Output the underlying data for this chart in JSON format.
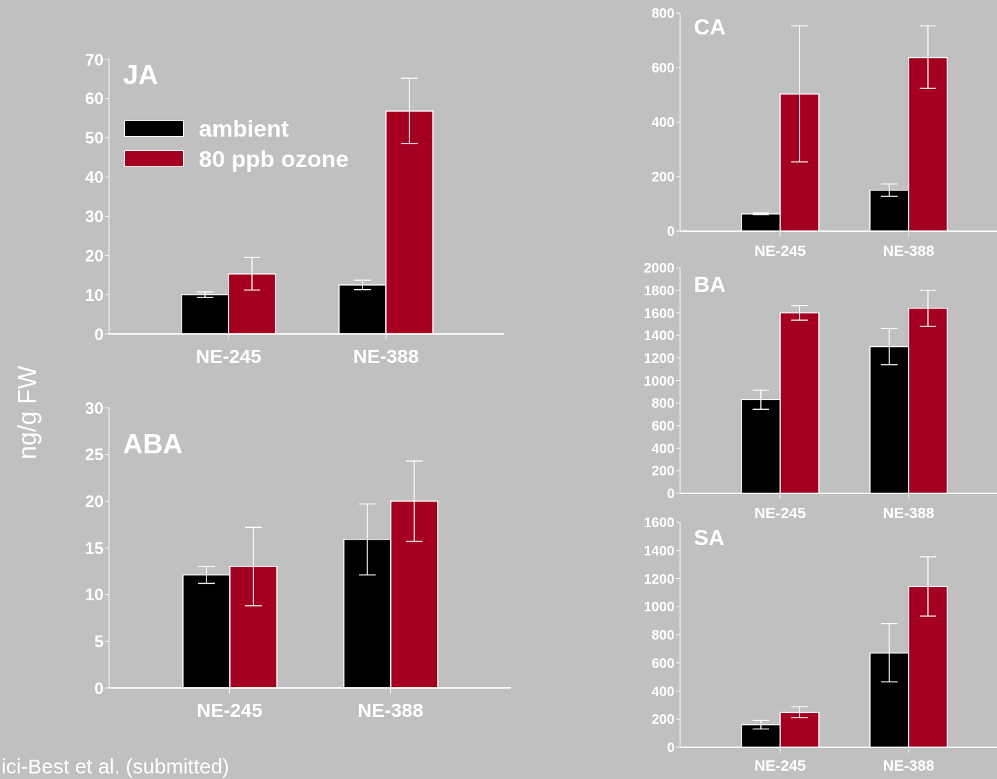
{
  "chart_data": [
    {
      "type": "bar",
      "title": "JA",
      "ylabel": "ng/g FW",
      "categories": [
        "NE-245",
        "NE-388"
      ],
      "series": [
        {
          "name": "ambient",
          "color": "#000000",
          "values": [
            10,
            12.5
          ],
          "errors": [
            [
              9.3,
              10.7
            ],
            [
              11.3,
              13.7
            ]
          ]
        },
        {
          "name": "80 ppb ozone",
          "color": "#a50021",
          "values": [
            15.3,
            56.8
          ],
          "errors": [
            [
              11.2,
              19.5
            ],
            [
              48.5,
              65.2
            ]
          ]
        }
      ],
      "ylim": [
        0,
        70
      ],
      "yticks": [
        0,
        10,
        20,
        30,
        40,
        50,
        60,
        70
      ],
      "legend": "top left"
    },
    {
      "type": "bar",
      "title": "ABA",
      "categories": [
        "NE-245",
        "NE-388"
      ],
      "series": [
        {
          "color": "#000000",
          "values": [
            12.1,
            15.9
          ],
          "errors": [
            [
              11.2,
              13.0
            ],
            [
              12.1,
              19.7
            ]
          ]
        },
        {
          "color": "#a50021",
          "values": [
            13.0,
            20.0
          ],
          "errors": [
            [
              8.8,
              17.2
            ],
            [
              15.7,
              24.3
            ]
          ]
        }
      ],
      "ylim": [
        0,
        30
      ],
      "yticks": [
        0,
        5,
        10,
        15,
        20,
        25,
        30
      ],
      "annotations": [
        "ici-Best et al. (submitted)"
      ]
    },
    {
      "type": "bar",
      "title": "CA",
      "categories": [
        "NE-245",
        "NE-388"
      ],
      "series": [
        {
          "color": "#000000",
          "values": [
            63,
            150
          ],
          "errors": [
            [
              60,
              67
            ],
            [
              128,
              173
            ]
          ]
        },
        {
          "color": "#a50021",
          "values": [
            503,
            637
          ],
          "errors": [
            [
              254,
              753
            ],
            [
              524,
              753
            ]
          ]
        }
      ],
      "ylim": [
        0,
        800
      ],
      "yticks": [
        0,
        200,
        400,
        600,
        800
      ]
    },
    {
      "type": "bar",
      "title": "BA",
      "categories": [
        "NE-245",
        "NE-388"
      ],
      "series": [
        {
          "color": "#000000",
          "values": [
            830,
            1300
          ],
          "errors": [
            [
              745,
              915
            ],
            [
              1140,
              1460
            ]
          ]
        },
        {
          "color": "#a50021",
          "values": [
            1600,
            1640
          ],
          "errors": [
            [
              1535,
              1665
            ],
            [
              1480,
              1800
            ]
          ]
        }
      ],
      "ylim": [
        0,
        2000
      ],
      "yticks": [
        0,
        200,
        400,
        600,
        800,
        1000,
        1200,
        1400,
        1600,
        1800,
        2000
      ]
    },
    {
      "type": "bar",
      "title": "SA",
      "categories": [
        "NE-245",
        "NE-388"
      ],
      "series": [
        {
          "color": "#000000",
          "values": [
            160,
            670
          ],
          "errors": [
            [
              130,
              190
            ],
            [
              465,
              880
            ]
          ]
        },
        {
          "color": "#a50021",
          "values": [
            248,
            1142
          ],
          "errors": [
            [
              210,
              288
            ],
            [
              933,
              1355
            ]
          ]
        }
      ],
      "ylim": [
        0,
        1600
      ],
      "yticks": [
        0,
        200,
        400,
        600,
        800,
        1000,
        1200,
        1400,
        1600
      ]
    }
  ]
}
